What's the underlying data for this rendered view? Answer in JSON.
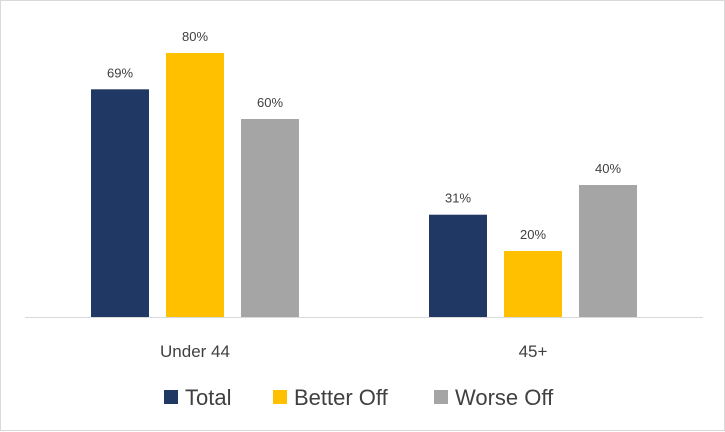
{
  "chart_data": {
    "type": "bar",
    "categories": [
      "Under 44",
      "45+"
    ],
    "series": [
      {
        "name": "Total",
        "values": [
          69,
          31
        ],
        "color": "#203864"
      },
      {
        "name": "Better Off",
        "values": [
          80,
          20
        ],
        "color": "#FFC000"
      },
      {
        "name": "Worse Off",
        "values": [
          60,
          40
        ],
        "color": "#A5A5A5"
      }
    ],
    "value_suffix": "%",
    "ylim": [
      0,
      100
    ],
    "grid": false,
    "legend_position": "bottom",
    "title": "",
    "xlabel": "",
    "ylabel": ""
  }
}
